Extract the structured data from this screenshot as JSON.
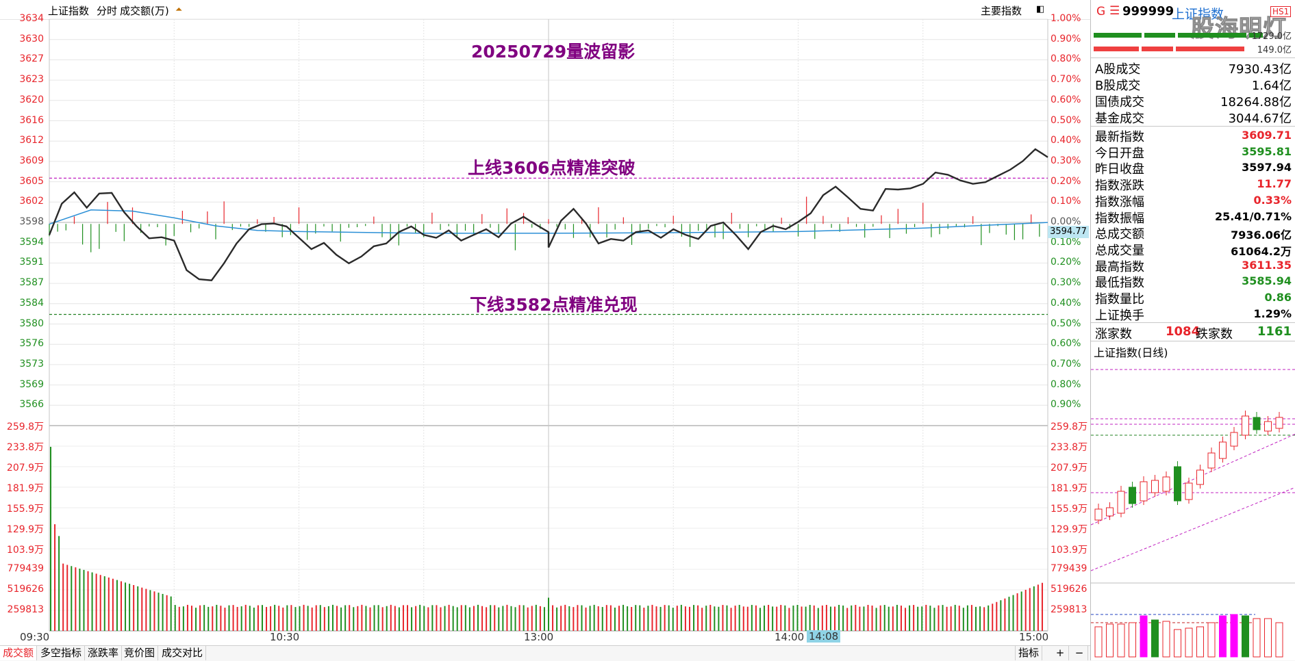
{
  "header": {
    "index_name": "上证指数",
    "mode": "分时",
    "volume_unit_label": "成交额(万)",
    "main_indicator_label": "主要指数"
  },
  "annotations": {
    "title": "20250729量波留影",
    "upper_line": "上线3606点精准突破",
    "lower_line": "下线3582点精准兑现"
  },
  "price_axis": {
    "left_labels": [
      "3634",
      "3630",
      "3627",
      "3623",
      "3620",
      "3616",
      "3612",
      "3609",
      "3605",
      "3602",
      "3598",
      "3594",
      "3591",
      "3587",
      "3584",
      "3580",
      "3576",
      "3573",
      "3569",
      "3566"
    ],
    "right_labels": [
      "1.00%",
      "0.90%",
      "0.80%",
      "0.70%",
      "0.60%",
      "0.50%",
      "0.40%",
      "0.30%",
      "0.20%",
      "0.10%",
      "0.00%",
      "0.10%",
      "0.20%",
      "0.30%",
      "0.40%",
      "0.50%",
      "0.60%",
      "0.70%",
      "0.80%",
      "0.90%"
    ],
    "current_price_tag": "3594.77"
  },
  "volume_axis": {
    "labels": [
      "259.8万",
      "233.8万",
      "207.9万",
      "181.9万",
      "155.9万",
      "129.9万",
      "103.9万",
      "779439",
      "519626",
      "259813"
    ]
  },
  "time_axis": {
    "labels": [
      "09:30",
      "10:30",
      "13:00",
      "14:00",
      "15:00"
    ],
    "cursor_time": "14:08"
  },
  "bottom_tabs": [
    "成交额",
    "多空指标",
    "涨跌率",
    "竞价图",
    "成交对比"
  ],
  "bottom_right": {
    "indicator_label": "指标",
    "plus": "+",
    "minus": "−"
  },
  "right_panel": {
    "code_prefix": "G",
    "menu_glyph": "☰",
    "code": "999999",
    "name": "上证指数",
    "badge": "HS1",
    "watermark": "股海明灯",
    "bar_values": [
      "1729.0亿",
      "149.0亿"
    ],
    "turnover_rows": [
      {
        "k": "A股成交",
        "v": "7930.43亿"
      },
      {
        "k": "B股成交",
        "v": "1.64亿"
      },
      {
        "k": "国债成交",
        "v": "18264.88亿"
      },
      {
        "k": "基金成交",
        "v": "3044.67亿"
      }
    ],
    "stat_rows": [
      {
        "k": "最新指数",
        "v": "3609.71",
        "c": "red"
      },
      {
        "k": "今日开盘",
        "v": "3595.81",
        "c": "grn"
      },
      {
        "k": "昨日收盘",
        "v": "3597.94",
        "c": "blk"
      },
      {
        "k": "指数涨跌",
        "v": "11.77",
        "c": "red"
      },
      {
        "k": "指数涨幅",
        "v": "0.33%",
        "c": "red"
      },
      {
        "k": "指数振幅",
        "v": "25.41/0.71%",
        "c": "blk"
      },
      {
        "k": "总成交额",
        "v": "7936.06亿",
        "c": "blk"
      },
      {
        "k": "总成交量",
        "v": "61064.2万",
        "c": "blk"
      },
      {
        "k": "最高指数",
        "v": "3611.35",
        "c": "red"
      },
      {
        "k": "最低指数",
        "v": "3585.94",
        "c": "grn"
      },
      {
        "k": "指数量比",
        "v": "0.86",
        "c": "grn"
      },
      {
        "k": "上证换手",
        "v": "1.29%",
        "c": "blk"
      }
    ],
    "breadth": {
      "up_label": "涨家数",
      "up": "1084",
      "down_label": "跌家数",
      "down": "1161"
    },
    "daily_label": "上证指数(日线)"
  },
  "colors": {
    "up": "#e8242b",
    "down": "#1f8f1f",
    "price_line": "#2a2a2a",
    "avg_line": "#2a8fd6",
    "annotation": "#800080",
    "magenta_volume": "#ff00ff"
  },
  "chart_data": {
    "type": "line",
    "title": "20250729量波留影",
    "x_range": [
      "09:30",
      "15:00"
    ],
    "ylim": [
      3566,
      3634
    ],
    "prev_close": 3597.94,
    "reference_lines": [
      {
        "label": "上线3606点精准突破",
        "value": 3606
      },
      {
        "label": "下线3582点精准兑现",
        "value": 3582
      }
    ],
    "price_series": [
      {
        "t": "09:30",
        "v": 3596.0
      },
      {
        "t": "09:33",
        "v": 3601.5
      },
      {
        "t": "09:36",
        "v": 3603.5
      },
      {
        "t": "09:39",
        "v": 3600.8
      },
      {
        "t": "09:42",
        "v": 3603.3
      },
      {
        "t": "09:45",
        "v": 3603.4
      },
      {
        "t": "09:48",
        "v": 3600.0
      },
      {
        "t": "09:51",
        "v": 3597.5
      },
      {
        "t": "09:54",
        "v": 3595.4
      },
      {
        "t": "09:57",
        "v": 3595.6
      },
      {
        "t": "10:00",
        "v": 3595.0
      },
      {
        "t": "10:03",
        "v": 3589.8
      },
      {
        "t": "10:06",
        "v": 3588.2
      },
      {
        "t": "10:09",
        "v": 3588.0
      },
      {
        "t": "10:12",
        "v": 3591.0
      },
      {
        "t": "10:15",
        "v": 3594.5
      },
      {
        "t": "10:18",
        "v": 3597.0
      },
      {
        "t": "10:21",
        "v": 3597.9
      },
      {
        "t": "10:24",
        "v": 3598.0
      },
      {
        "t": "10:27",
        "v": 3597.5
      },
      {
        "t": "10:30",
        "v": 3595.5
      },
      {
        "t": "10:33",
        "v": 3593.5
      },
      {
        "t": "10:36",
        "v": 3594.6
      },
      {
        "t": "10:39",
        "v": 3592.5
      },
      {
        "t": "10:42",
        "v": 3591.0
      },
      {
        "t": "10:45",
        "v": 3592.2
      },
      {
        "t": "10:48",
        "v": 3594.0
      },
      {
        "t": "10:51",
        "v": 3594.5
      },
      {
        "t": "10:54",
        "v": 3596.5
      },
      {
        "t": "10:57",
        "v": 3597.5
      },
      {
        "t": "11:00",
        "v": 3596.0
      },
      {
        "t": "11:03",
        "v": 3595.5
      },
      {
        "t": "11:06",
        "v": 3596.8
      },
      {
        "t": "11:09",
        "v": 3595.0
      },
      {
        "t": "11:12",
        "v": 3596.0
      },
      {
        "t": "11:15",
        "v": 3597.0
      },
      {
        "t": "11:18",
        "v": 3595.6
      },
      {
        "t": "11:21",
        "v": 3598.0
      },
      {
        "t": "11:24",
        "v": 3599.2
      },
      {
        "t": "11:27",
        "v": 3597.8
      },
      {
        "t": "11:30",
        "v": 3596.5
      },
      {
        "t": "13:00",
        "v": 3593.8
      },
      {
        "t": "13:03",
        "v": 3598.5
      },
      {
        "t": "13:06",
        "v": 3600.6
      },
      {
        "t": "13:09",
        "v": 3598.0
      },
      {
        "t": "13:12",
        "v": 3594.5
      },
      {
        "t": "13:15",
        "v": 3595.3
      },
      {
        "t": "13:18",
        "v": 3595.0
      },
      {
        "t": "13:21",
        "v": 3596.5
      },
      {
        "t": "13:24",
        "v": 3596.8
      },
      {
        "t": "13:27",
        "v": 3595.5
      },
      {
        "t": "13:30",
        "v": 3597.0
      },
      {
        "t": "13:33",
        "v": 3596.0
      },
      {
        "t": "13:36",
        "v": 3595.3
      },
      {
        "t": "13:39",
        "v": 3597.6
      },
      {
        "t": "13:42",
        "v": 3598.2
      },
      {
        "t": "13:45",
        "v": 3596.0
      },
      {
        "t": "13:48",
        "v": 3593.5
      },
      {
        "t": "13:51",
        "v": 3596.5
      },
      {
        "t": "13:54",
        "v": 3597.6
      },
      {
        "t": "13:57",
        "v": 3597.0
      },
      {
        "t": "14:00",
        "v": 3598.3
      },
      {
        "t": "14:03",
        "v": 3599.8
      },
      {
        "t": "14:06",
        "v": 3603.0
      },
      {
        "t": "14:09",
        "v": 3604.5
      },
      {
        "t": "14:12",
        "v": 3602.6
      },
      {
        "t": "14:15",
        "v": 3600.6
      },
      {
        "t": "14:18",
        "v": 3600.3
      },
      {
        "t": "14:21",
        "v": 3604.1
      },
      {
        "t": "14:24",
        "v": 3604.0
      },
      {
        "t": "14:27",
        "v": 3604.2
      },
      {
        "t": "14:30",
        "v": 3605.0
      },
      {
        "t": "14:33",
        "v": 3607.0
      },
      {
        "t": "14:36",
        "v": 3606.6
      },
      {
        "t": "14:39",
        "v": 3605.6
      },
      {
        "t": "14:42",
        "v": 3605.0
      },
      {
        "t": "14:45",
        "v": 3605.3
      },
      {
        "t": "14:48",
        "v": 3606.4
      },
      {
        "t": "14:51",
        "v": 3607.5
      },
      {
        "t": "14:54",
        "v": 3609.0
      },
      {
        "t": "14:57",
        "v": 3611.1
      },
      {
        "t": "15:00",
        "v": 3609.7
      }
    ],
    "avg_series": [
      {
        "t": "09:30",
        "v": 3597.9
      },
      {
        "t": "09:40",
        "v": 3600.4
      },
      {
        "t": "09:50",
        "v": 3600.2
      },
      {
        "t": "10:00",
        "v": 3599.0
      },
      {
        "t": "10:10",
        "v": 3597.6
      },
      {
        "t": "10:20",
        "v": 3596.8
      },
      {
        "t": "10:30",
        "v": 3596.6
      },
      {
        "t": "11:00",
        "v": 3596.3
      },
      {
        "t": "11:30",
        "v": 3596.3
      },
      {
        "t": "13:00",
        "v": 3596.3
      },
      {
        "t": "13:30",
        "v": 3596.4
      },
      {
        "t": "14:00",
        "v": 3596.6
      },
      {
        "t": "14:30",
        "v": 3597.2
      },
      {
        "t": "15:00",
        "v": 3598.2
      }
    ],
    "volume_ylim": [
      0,
      2598000
    ]
  }
}
